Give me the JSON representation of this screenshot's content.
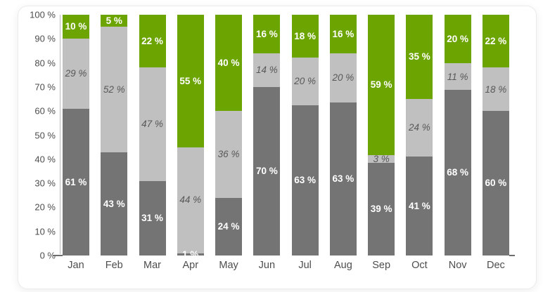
{
  "chart_data": {
    "type": "bar",
    "stacked": true,
    "percent_stacked": true,
    "title": "",
    "xlabel": "",
    "ylabel": "",
    "grid": false,
    "legend": "none",
    "ylim": [
      0,
      100
    ],
    "categories": [
      "Jan",
      "Feb",
      "Mar",
      "Apr",
      "May",
      "Jun",
      "Jul",
      "Aug",
      "Sep",
      "Oct",
      "Nov",
      "Dec"
    ],
    "series": [
      {
        "name": "dark-gray-segment",
        "color": "#747474",
        "label_style": "bold-white",
        "values": [
          61,
          43,
          31,
          1,
          24,
          70,
          63,
          63,
          39,
          41,
          68,
          60
        ]
      },
      {
        "name": "light-gray-segment",
        "color": "#c0c0c0",
        "label_style": "italic-gray",
        "values": [
          29,
          52,
          47,
          44,
          36,
          14,
          20,
          20,
          3,
          24,
          11,
          18
        ]
      },
      {
        "name": "green-segment",
        "color": "#6ca402",
        "label_style": "bold-white",
        "values": [
          10,
          5,
          22,
          55,
          40,
          16,
          18,
          16,
          59,
          35,
          20,
          22
        ]
      }
    ],
    "value_label_suffix": " %",
    "y_ticks": [
      {
        "value": 0,
        "label": "0 %"
      },
      {
        "value": 10,
        "label": "10 %"
      },
      {
        "value": 20,
        "label": "20 %"
      },
      {
        "value": 30,
        "label": "30 %"
      },
      {
        "value": 40,
        "label": "40 %"
      },
      {
        "value": 50,
        "label": "50 %"
      },
      {
        "value": 60,
        "label": "60 %"
      },
      {
        "value": 70,
        "label": "70 %"
      },
      {
        "value": 80,
        "label": "80 %"
      },
      {
        "value": 90,
        "label": "90 %"
      },
      {
        "value": 100,
        "label": "100 %"
      }
    ]
  },
  "colors": {
    "card_background": "#ffffff",
    "card_border": "#ebebeb",
    "y_axis_line": "#b9b9b9",
    "x_axis_line": "#6e6e6e",
    "tick_text": "#4d4d4d",
    "light_segment_label_text": "#585858",
    "dark_green_segment_label_text": "#ffffff"
  }
}
